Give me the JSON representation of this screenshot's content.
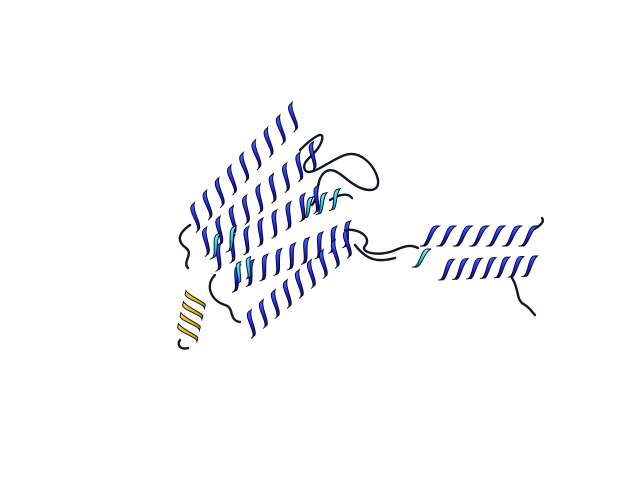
{
  "scene": {
    "background": "#ffffff",
    "subject": "protein-structure-cartoon",
    "colors": {
      "helix_blue": "#1f1fe0",
      "helix_blue_dark": "#0a0a7a",
      "helix_light": "#3c5cff",
      "cyan": "#22c8d8",
      "green_cyan": "#4fd1a0",
      "gold": "#e6b400",
      "gold_dark": "#8a6a00",
      "coil": "#101828"
    }
  }
}
